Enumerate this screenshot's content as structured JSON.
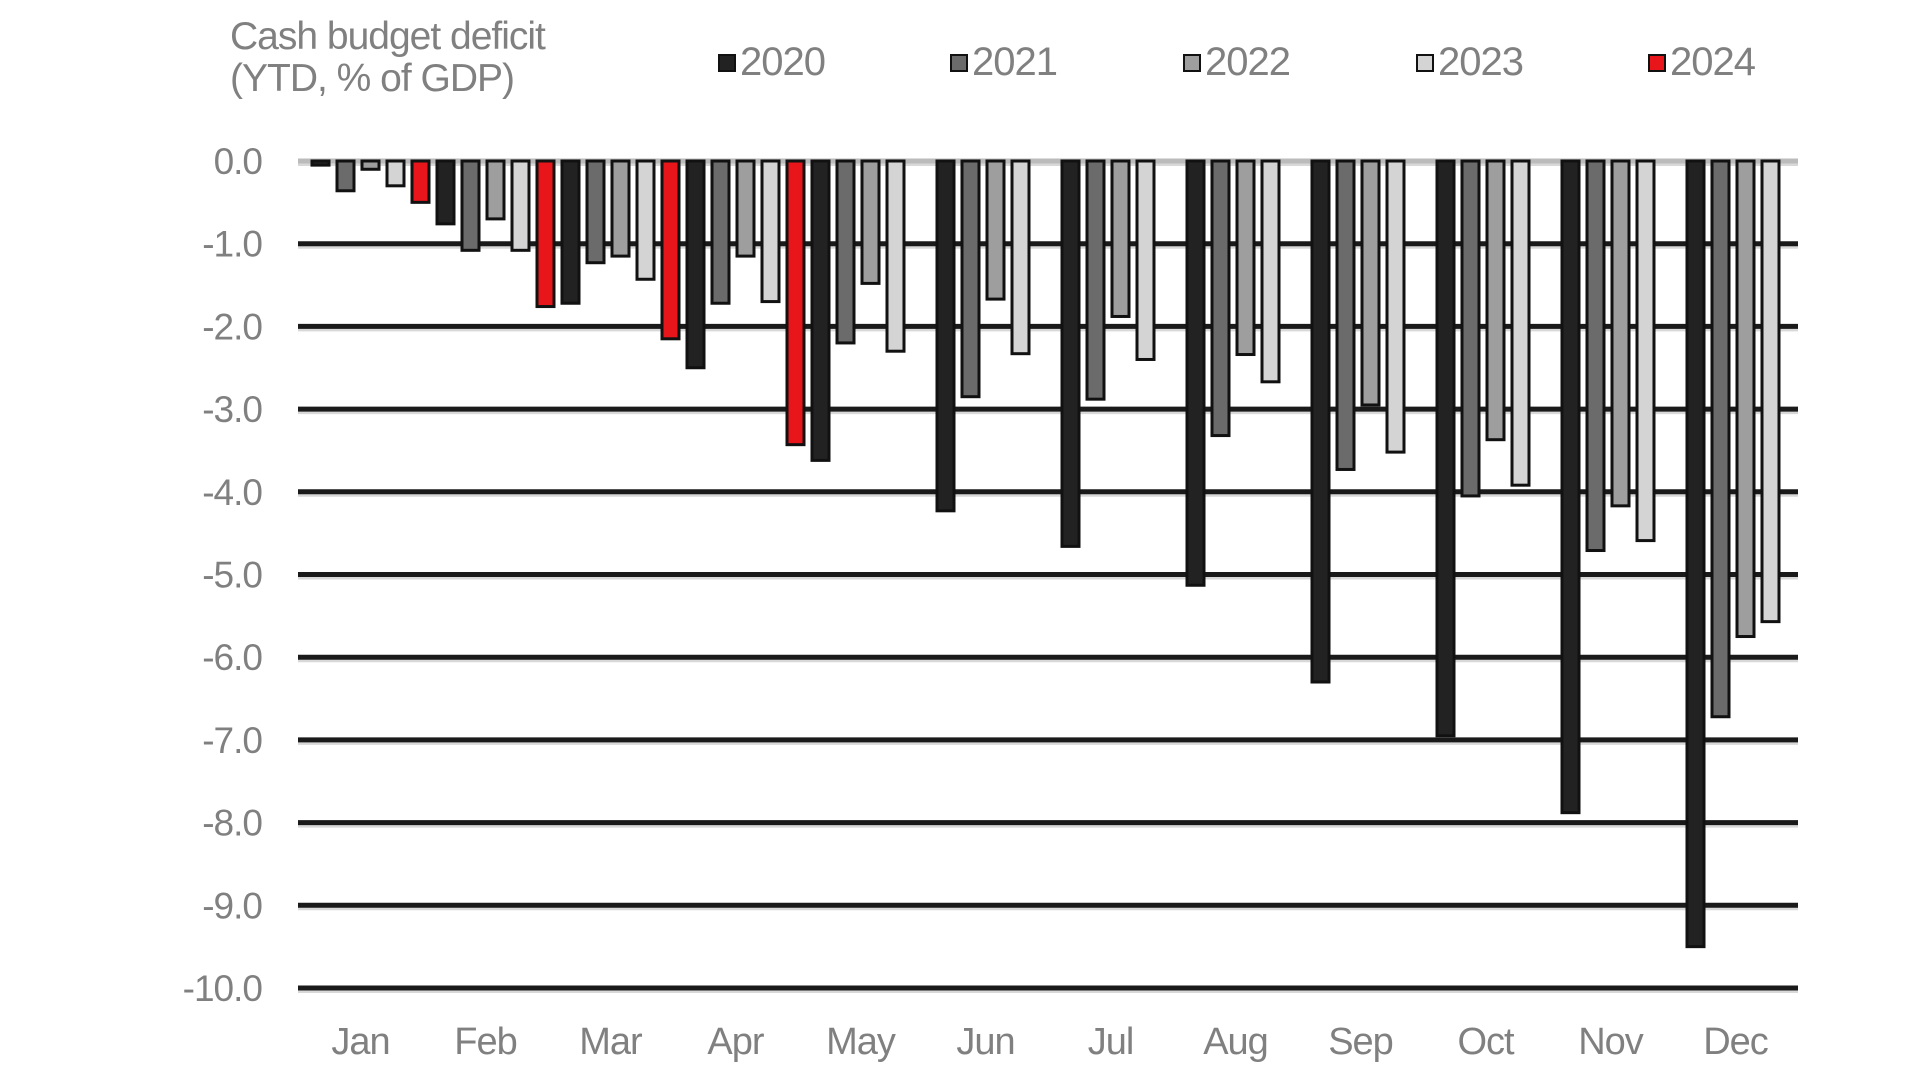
{
  "title_line1": "Cash budget deficit",
  "title_line2": "(YTD, % of GDP)",
  "legend": [
    {
      "label": "2020",
      "color": "#222222"
    },
    {
      "label": "2021",
      "color": "#6b6b6b"
    },
    {
      "label": "2022",
      "color": "#9e9e9e"
    },
    {
      "label": "2023",
      "color": "#d4d4d4"
    },
    {
      "label": "2024",
      "color": "#e8161b"
    }
  ],
  "chart_data": {
    "type": "bar",
    "title": "Cash budget deficit (YTD, % of GDP)",
    "xlabel": "",
    "ylabel": "YTD, % of GDP",
    "ylim": [
      -10,
      0
    ],
    "yticks": [
      "0.0",
      "-1.0",
      "-2.0",
      "-3.0",
      "-4.0",
      "-5.0",
      "-6.0",
      "-7.0",
      "-8.0",
      "-9.0",
      "-10.0"
    ],
    "grid": true,
    "legend_position": "top",
    "categories": [
      "Jan",
      "Feb",
      "Mar",
      "Apr",
      "May",
      "Jun",
      "Jul",
      "Aug",
      "Sep",
      "Oct",
      "Nov",
      "Dec"
    ],
    "series": [
      {
        "name": "2020",
        "values": [
          -0.05,
          -0.76,
          -1.72,
          -2.5,
          -3.62,
          -4.23,
          -4.66,
          -5.13,
          -6.3,
          -6.95,
          -7.88,
          -9.5
        ]
      },
      {
        "name": "2021",
        "values": [
          -0.36,
          -1.08,
          -1.23,
          -1.72,
          -2.2,
          -2.85,
          -2.88,
          -3.32,
          -3.73,
          -4.05,
          -4.71,
          -6.72
        ]
      },
      {
        "name": "2022",
        "values": [
          -0.1,
          -0.7,
          -1.15,
          -1.15,
          -1.48,
          -1.67,
          -1.88,
          -2.34,
          -2.95,
          -3.37,
          -4.17,
          -5.75
        ]
      },
      {
        "name": "2023",
        "values": [
          -0.3,
          -1.08,
          -1.43,
          -1.7,
          -2.3,
          -2.33,
          -2.4,
          -2.67,
          -3.52,
          -3.92,
          -4.59,
          -5.57
        ]
      },
      {
        "name": "2024",
        "values": [
          -0.5,
          -1.76,
          -2.15,
          -3.43,
          null,
          null,
          null,
          null,
          null,
          null,
          null,
          null
        ]
      }
    ]
  }
}
